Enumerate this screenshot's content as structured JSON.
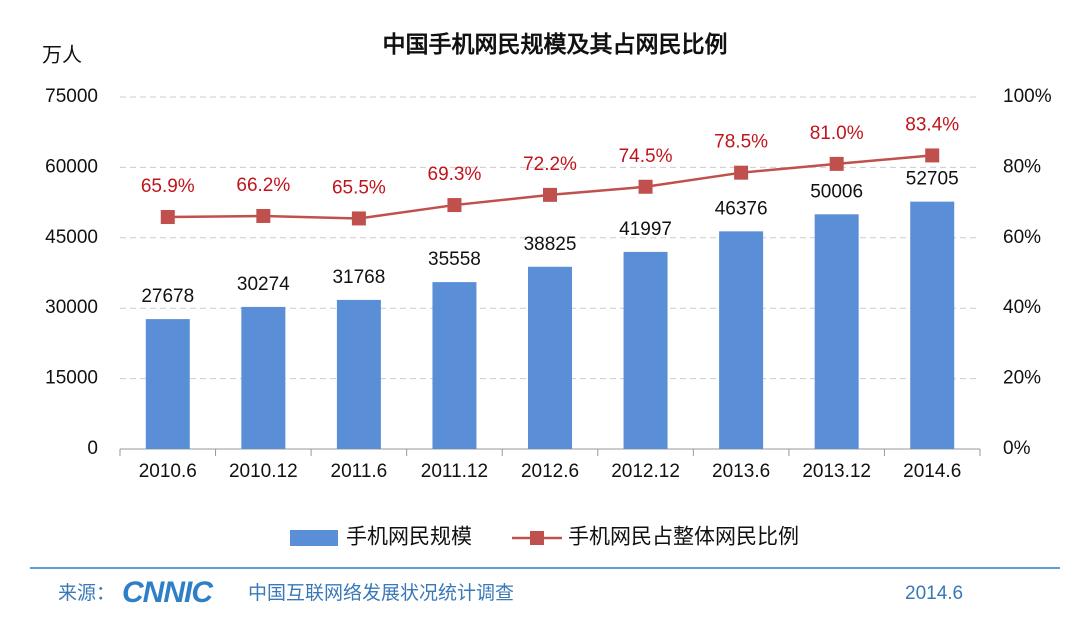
{
  "chart_data": {
    "type": "bar-line",
    "title": "中国手机网民规模及其占网民比例",
    "y_label": "万人",
    "categories": [
      "2010.6",
      "2010.12",
      "2011.6",
      "2011.12",
      "2012.6",
      "2012.12",
      "2013.6",
      "2013.12",
      "2014.6"
    ],
    "series": [
      {
        "name": "手机网民规模",
        "type": "bar",
        "color": "#5a8fd8",
        "values": [
          27678,
          30274,
          31768,
          35558,
          38825,
          41997,
          46376,
          50006,
          52705
        ]
      },
      {
        "name": "手机网民占整体网民比例",
        "type": "line",
        "axis": "y2",
        "color": "#c0504d",
        "label_color": "#c0141c",
        "values": [
          65.9,
          66.2,
          65.5,
          69.3,
          72.2,
          74.5,
          78.5,
          81.0,
          83.4
        ],
        "value_labels": [
          "65.9%",
          "66.2%",
          "65.5%",
          "69.3%",
          "72.2%",
          "74.5%",
          "78.5%",
          "81.0%",
          "83.4%"
        ]
      }
    ],
    "ylim": [
      0,
      75000
    ],
    "yticks": [
      0,
      15000,
      30000,
      45000,
      60000,
      75000
    ],
    "y2lim": [
      0,
      100
    ],
    "y2ticks": [
      {
        "value": 0,
        "label": "0%"
      },
      {
        "value": 20,
        "label": "20%"
      },
      {
        "value": 40,
        "label": "40%"
      },
      {
        "value": 60,
        "label": "60%"
      },
      {
        "value": 80,
        "label": "80%"
      },
      {
        "value": 100,
        "label": "100%"
      }
    ],
    "grid": true,
    "legend": "bottom"
  },
  "footer": {
    "source_label": "来源：",
    "logo": "CNNIC",
    "survey": "中国互联网络发展状况统计调查",
    "date": "2014.6"
  }
}
